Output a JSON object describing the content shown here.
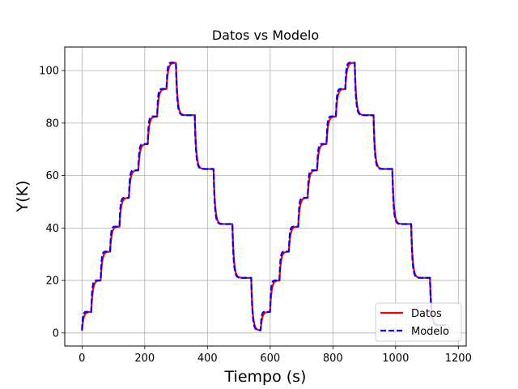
{
  "chart_data": {
    "type": "line",
    "title": "Datos vs Modelo",
    "xlabel": "Tiempo (s)",
    "ylabel": "Y(K)",
    "xlim": [
      -55,
      1225
    ],
    "ylim": [
      -5,
      109
    ],
    "xticks": [
      0,
      200,
      400,
      600,
      800,
      1000,
      1200
    ],
    "yticks": [
      0,
      20,
      40,
      60,
      80,
      100
    ],
    "grid": true,
    "legend_position": "lower-right",
    "steps": [
      {
        "t": 0,
        "level": 8
      },
      {
        "t": 30,
        "level": 20
      },
      {
        "t": 60,
        "level": 31
      },
      {
        "t": 90,
        "level": 40.5
      },
      {
        "t": 120,
        "level": 51.5
      },
      {
        "t": 150,
        "level": 62
      },
      {
        "t": 180,
        "level": 72
      },
      {
        "t": 210,
        "level": 82.5
      },
      {
        "t": 240,
        "level": 93
      },
      {
        "t": 270,
        "level": 103
      },
      {
        "t": 300,
        "level": 83
      },
      {
        "t": 360,
        "level": 62.5
      },
      {
        "t": 420,
        "level": 41.5
      },
      {
        "t": 480,
        "level": 21
      },
      {
        "t": 540,
        "level": 1
      },
      {
        "t": 570,
        "level": 8
      },
      {
        "t": 600,
        "level": 20
      },
      {
        "t": 630,
        "level": 31
      },
      {
        "t": 660,
        "level": 40.5
      },
      {
        "t": 690,
        "level": 51.5
      },
      {
        "t": 720,
        "level": 62
      },
      {
        "t": 750,
        "level": 72
      },
      {
        "t": 780,
        "level": 82.5
      },
      {
        "t": 810,
        "level": 93
      },
      {
        "t": 840,
        "level": 103
      },
      {
        "t": 870,
        "level": 83
      },
      {
        "t": 930,
        "level": 62.5
      },
      {
        "t": 990,
        "level": 41.5
      },
      {
        "t": 1050,
        "level": 21
      },
      {
        "t": 1110,
        "level": 3
      }
    ],
    "t_end": 1160,
    "series": [
      {
        "name": "Datos",
        "color": "#ff0000",
        "style": "solid",
        "tau_up": 5,
        "tau_down": 5,
        "overshoot": 0
      },
      {
        "name": "Modelo",
        "color": "#0000ff",
        "style": "dashed",
        "tau_up": 3.5,
        "tau_down": 4.5,
        "overshoot": 1.5
      }
    ]
  }
}
